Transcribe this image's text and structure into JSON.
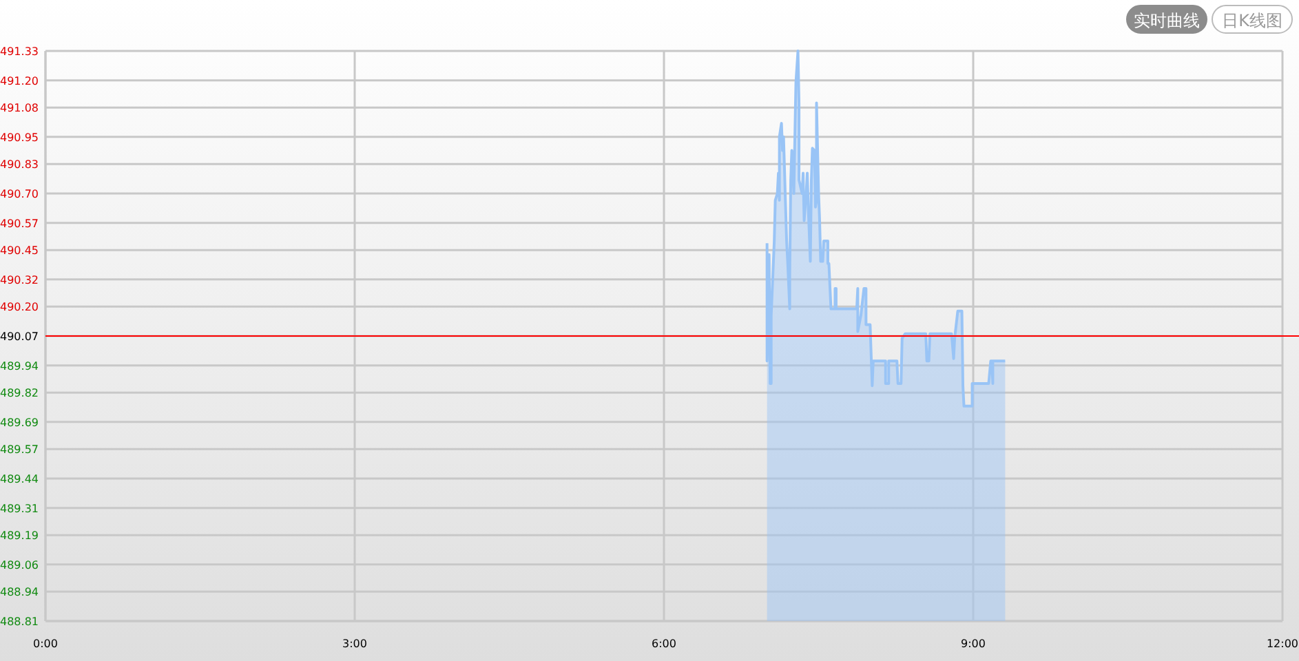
{
  "chart_data": {
    "type": "area",
    "annotations": [
      "实时曲线",
      "日K线图"
    ],
    "xlim": [
      0,
      12
    ],
    "xticks": [
      {
        "value": 0,
        "label": "0:00"
      },
      {
        "value": 3,
        "label": "3:00"
      },
      {
        "value": 6,
        "label": "6:00"
      },
      {
        "value": 9,
        "label": "9:00"
      },
      {
        "value": 12,
        "label": "12:00"
      }
    ],
    "ylim": [
      488.81,
      491.33
    ],
    "yticks": [
      488.81,
      488.94,
      489.06,
      489.19,
      489.31,
      489.44,
      489.57,
      489.69,
      489.82,
      489.94,
      490.07,
      {
        "value": 490.2,
        "label": "490.20"
      },
      490.32,
      490.45,
      490.57,
      {
        "value": 490.7,
        "label": "490.70"
      },
      490.83,
      490.95,
      491.08,
      {
        "value": 491.2,
        "label": "491.20"
      },
      491.33
    ],
    "grid": true,
    "ref_lines": [
      {
        "axis": "y",
        "value": 490.07,
        "color": "#ff0000"
      }
    ],
    "series": [
      {
        "color": "#99c4f6",
        "x": [
          7.0,
          7.0,
          7.02,
          7.03,
          7.04,
          7.04,
          7.07,
          7.08,
          7.1,
          7.11,
          7.12,
          7.12,
          7.14,
          7.15,
          7.16,
          7.18,
          7.19,
          7.2,
          7.22,
          7.22,
          7.23,
          7.24,
          7.26,
          7.27,
          7.28,
          7.3,
          7.31,
          7.31,
          7.34,
          7.35,
          7.36,
          7.38,
          7.39,
          7.4,
          7.42,
          7.43,
          7.44,
          7.46,
          7.47,
          7.48,
          7.48,
          7.5,
          7.51,
          7.52,
          7.54,
          7.55,
          7.59,
          7.59,
          7.6,
          7.62,
          7.66,
          7.66,
          7.67,
          7.67,
          7.87,
          7.88,
          7.88,
          7.91,
          7.94,
          7.96,
          7.96,
          8.0,
          8.02,
          8.03,
          8.15,
          8.15,
          8.18,
          8.18,
          8.26,
          8.27,
          8.3,
          8.31,
          8.34,
          8.54,
          8.55,
          8.57,
          8.58,
          8.79,
          8.81,
          8.82,
          8.85,
          8.89,
          8.9,
          8.91,
          8.99,
          8.99,
          9.15,
          9.17,
          9.18,
          9.19,
          9.19,
          9.31
        ],
        "values": [
          490.48,
          489.96,
          490.43,
          489.86,
          489.86,
          490.16,
          490.49,
          490.67,
          490.7,
          490.79,
          490.67,
          490.95,
          491.01,
          490.89,
          490.95,
          490.64,
          490.49,
          490.4,
          490.19,
          490.34,
          490.76,
          490.89,
          490.7,
          490.95,
          491.19,
          491.33,
          491.1,
          490.76,
          490.7,
          490.79,
          490.58,
          490.7,
          490.79,
          490.64,
          490.4,
          490.76,
          490.9,
          490.89,
          490.64,
          490.67,
          491.1,
          490.7,
          490.58,
          490.4,
          490.4,
          490.49,
          490.49,
          490.39,
          490.39,
          490.19,
          490.19,
          490.28,
          490.28,
          490.19,
          490.19,
          490.28,
          490.09,
          490.16,
          490.28,
          490.28,
          490.12,
          490.12,
          489.85,
          489.96,
          489.96,
          489.86,
          489.86,
          489.96,
          489.96,
          489.86,
          489.86,
          490.06,
          490.08,
          490.08,
          489.96,
          489.96,
          490.08,
          490.08,
          489.97,
          490.06,
          490.18,
          490.18,
          489.85,
          489.76,
          489.76,
          489.86,
          489.86,
          489.96,
          489.96,
          489.86,
          489.96,
          489.96
        ]
      }
    ]
  }
}
